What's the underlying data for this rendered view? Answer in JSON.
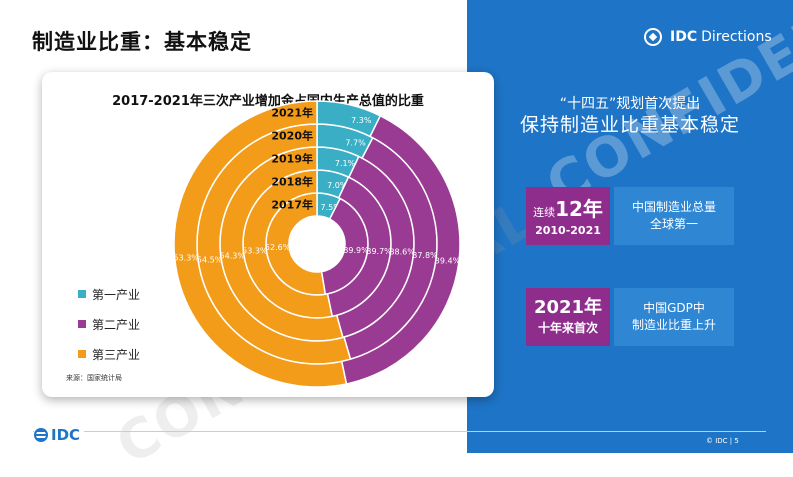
{
  "page": {
    "title": "制造业比重：基本稳定"
  },
  "brand": {
    "logo_text": "IDC",
    "name": "Directions"
  },
  "highlight": {
    "line1": "“十四五”规划首次提出",
    "line2": "保持制造业比重基本稳定"
  },
  "badges": [
    {
      "top_prefix": "连续",
      "big": "12年",
      "bottom": "2010-2021"
    },
    {
      "top_prefix": "",
      "big": "2021年",
      "bottom": "十年来首次"
    }
  ],
  "info_boxes": [
    {
      "line1": "中国制造业总量",
      "line2": "全球第一"
    },
    {
      "line1": "中国GDP中",
      "line2": "制造业比重上升"
    }
  ],
  "footer": {
    "logo": "IDC",
    "copyright": "© IDC |   5"
  },
  "watermark": {
    "text": "CONFIDENTIAL"
  },
  "chart_data": {
    "type": "donut",
    "title": "2017-2021年三次产业增加金占国内生产总值的比重",
    "years": [
      "2017年",
      "2018年",
      "2019年",
      "2020年",
      "2021年"
    ],
    "series": [
      {
        "name": "第一产业",
        "color": "#3aaec4",
        "values": [
          7.5,
          7.0,
          7.1,
          7.7,
          7.3
        ]
      },
      {
        "name": "第二产业",
        "color": "#993b92",
        "values": [
          39.9,
          39.7,
          38.6,
          37.8,
          39.4
        ]
      },
      {
        "name": "第三产业",
        "color": "#f39c1a",
        "values": [
          52.6,
          53.3,
          54.3,
          54.5,
          53.3
        ]
      }
    ],
    "source": "来源：国家统计局"
  }
}
